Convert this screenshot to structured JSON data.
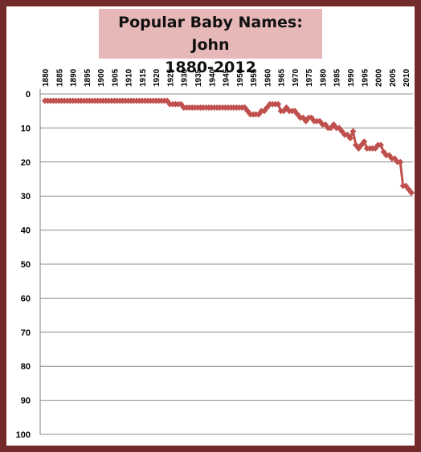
{
  "colors": {
    "frame": "#722a2a",
    "title_bg": "#e6b8b7",
    "series": "#c0504d",
    "grid": "#8c8c8c"
  },
  "chart_data": {
    "type": "line",
    "title": "Popular Baby Names:  John",
    "subtitle": "1880-2012",
    "xlabel": "",
    "ylabel": "",
    "xlim": [
      1880,
      2012
    ],
    "ylim": [
      0,
      100
    ],
    "y_reversed": true,
    "x_axis_position": "top",
    "x_ticks": [
      1880,
      1885,
      1890,
      1895,
      1900,
      1905,
      1910,
      1915,
      1920,
      1925,
      1930,
      1935,
      1940,
      1945,
      1950,
      1955,
      1960,
      1965,
      1970,
      1975,
      1980,
      1985,
      1990,
      1995,
      2000,
      2005,
      2010
    ],
    "y_ticks": [
      0,
      10,
      20,
      30,
      40,
      50,
      60,
      70,
      80,
      90,
      100
    ],
    "grid": true,
    "legend": "none",
    "marker": "diamond",
    "series": [
      {
        "x": [
          1880,
          1881,
          1882,
          1883,
          1884,
          1885,
          1886,
          1887,
          1888,
          1889,
          1890,
          1891,
          1892,
          1893,
          1894,
          1895,
          1896,
          1897,
          1898,
          1899,
          1900,
          1901,
          1902,
          1903,
          1904,
          1905,
          1906,
          1907,
          1908,
          1909,
          1910,
          1911,
          1912,
          1913,
          1914,
          1915,
          1916,
          1917,
          1918,
          1919,
          1920,
          1921,
          1922,
          1923,
          1924,
          1925,
          1926,
          1927,
          1928,
          1929,
          1930,
          1931,
          1932,
          1933,
          1934,
          1935,
          1936,
          1937,
          1938,
          1939,
          1940,
          1941,
          1942,
          1943,
          1944,
          1945,
          1946,
          1947,
          1948,
          1949,
          1950,
          1951,
          1952,
          1953,
          1954,
          1955,
          1956,
          1957,
          1958,
          1959,
          1960,
          1961,
          1962,
          1963,
          1964,
          1965,
          1966,
          1967,
          1968,
          1969,
          1970,
          1971,
          1972,
          1973,
          1974,
          1975,
          1976,
          1977,
          1978,
          1979,
          1980,
          1981,
          1982,
          1983,
          1984,
          1985,
          1986,
          1987,
          1988,
          1989,
          1990,
          1991,
          1992,
          1993,
          1994,
          1995,
          1996,
          1997,
          1998,
          1999,
          2000,
          2001,
          2002,
          2003,
          2004,
          2005,
          2006,
          2007,
          2008,
          2009,
          2010,
          2011,
          2012
        ],
        "values": [
          2,
          2,
          2,
          2,
          2,
          2,
          2,
          2,
          2,
          2,
          2,
          2,
          2,
          2,
          2,
          2,
          2,
          2,
          2,
          2,
          2,
          2,
          2,
          2,
          2,
          2,
          2,
          2,
          2,
          2,
          2,
          2,
          2,
          2,
          2,
          2,
          2,
          2,
          2,
          2,
          2,
          2,
          2,
          2,
          2,
          3,
          3,
          3,
          3,
          3,
          4,
          4,
          4,
          4,
          4,
          4,
          4,
          4,
          4,
          4,
          4,
          4,
          4,
          4,
          4,
          4,
          4,
          4,
          4,
          4,
          4,
          4,
          4,
          5,
          6,
          6,
          6,
          6,
          5,
          5,
          4,
          3,
          3,
          3,
          3,
          5,
          5,
          4,
          5,
          5,
          5,
          6,
          7,
          7,
          8,
          7,
          7,
          8,
          8,
          8,
          9,
          9,
          10,
          10,
          9,
          10,
          10,
          11,
          12,
          12,
          13,
          11,
          15,
          16,
          15,
          14,
          16,
          16,
          16,
          16,
          15,
          15,
          17,
          18,
          18,
          19,
          19,
          20,
          20,
          27,
          27,
          28,
          29
        ]
      }
    ]
  }
}
